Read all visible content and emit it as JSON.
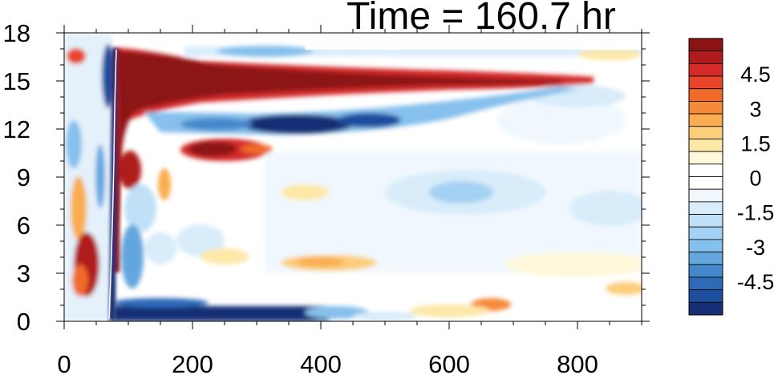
{
  "chart_data": {
    "type": "heatmap",
    "title": "Time = 160.7 hr",
    "xlabel": "",
    "ylabel": "",
    "xlim": [
      0,
      900
    ],
    "ylim": [
      0,
      18
    ],
    "x_ticks": [
      "0",
      "200",
      "400",
      "600",
      "800"
    ],
    "y_ticks": [
      "0",
      "3",
      "6",
      "9",
      "12",
      "15",
      "18"
    ],
    "x_tick_values": [
      0,
      200,
      400,
      600,
      800
    ],
    "y_tick_values": [
      0,
      3,
      6,
      9,
      12,
      15,
      18
    ],
    "colorbar": {
      "min": -6,
      "max": 6,
      "step": 0.75,
      "labels": [
        "4.5",
        "3",
        "1.5",
        "0",
        "-1.5",
        "-3",
        "-4.5"
      ],
      "label_values": [
        4.5,
        3,
        1.5,
        0,
        -1.5,
        -3,
        -4.5
      ],
      "colors": [
        "#8c1414",
        "#b01c1c",
        "#d42a2a",
        "#e8452b",
        "#f06a2c",
        "#f68a3a",
        "#f9ad50",
        "#fccd7a",
        "#fde8a8",
        "#fff8dc",
        "#ffffff",
        "#ffffff",
        "#f0f8fe",
        "#d8ecfa",
        "#bfe0f6",
        "#a4d2f3",
        "#86c0ec",
        "#64a6de",
        "#4688cc",
        "#2e6ab8",
        "#1e4e9e",
        "#162f74"
      ]
    }
  }
}
